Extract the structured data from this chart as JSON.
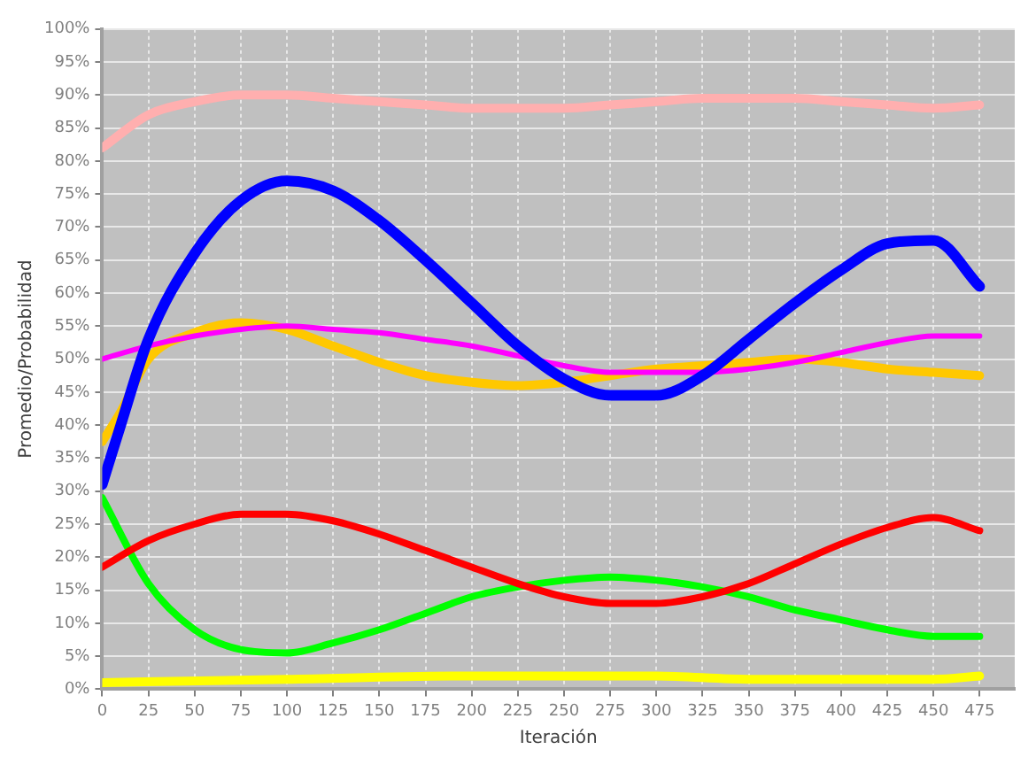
{
  "chart_data": {
    "type": "line",
    "xlabel": "Iteración",
    "ylabel": "Promedio/Probabilidad",
    "xlim": [
      0,
      494
    ],
    "xticks": [
      0,
      25,
      50,
      75,
      100,
      125,
      150,
      175,
      200,
      225,
      250,
      275,
      300,
      325,
      350,
      375,
      400,
      425,
      450,
      475
    ],
    "ylim": [
      0,
      100
    ],
    "yticks": [
      {
        "value": 0,
        "label": "0%"
      },
      {
        "value": 5,
        "label": "5%"
      },
      {
        "value": 10,
        "label": "10%"
      },
      {
        "value": 15,
        "label": "15%"
      },
      {
        "value": 20,
        "label": "20%"
      },
      {
        "value": 25,
        "label": "25%"
      },
      {
        "value": 30,
        "label": "30%"
      },
      {
        "value": 35,
        "label": "35%"
      },
      {
        "value": 40,
        "label": "40%"
      },
      {
        "value": 45,
        "label": "45%"
      },
      {
        "value": 50,
        "label": "50%"
      },
      {
        "value": 55,
        "label": "55%"
      },
      {
        "value": 60,
        "label": "60%"
      },
      {
        "value": 65,
        "label": "65%"
      },
      {
        "value": 70,
        "label": "70%"
      },
      {
        "value": 75,
        "label": "75%"
      },
      {
        "value": 80,
        "label": "80%"
      },
      {
        "value": 85,
        "label": "85%"
      },
      {
        "value": 90,
        "label": "90%"
      },
      {
        "value": 95,
        "label": "95%"
      },
      {
        "value": 100,
        "label": "100%"
      }
    ],
    "grid": true,
    "legend": false,
    "marker": "none",
    "line_style": "solid",
    "series": [
      {
        "color": "#ffafaf",
        "x": [
          0,
          25,
          50,
          75,
          100,
          125,
          150,
          175,
          200,
          225,
          250,
          275,
          300,
          325,
          350,
          375,
          400,
          425,
          450,
          475
        ],
        "values": [
          82,
          87,
          89,
          90,
          90,
          89.5,
          89,
          88.5,
          88,
          88,
          88,
          88.5,
          89,
          89.5,
          89.5,
          89.5,
          89,
          88.5,
          88,
          88.5
        ]
      },
      {
        "color": "#0000ff",
        "x": [
          0,
          10,
          25,
          50,
          75,
          100,
          125,
          150,
          175,
          200,
          225,
          250,
          275,
          300,
          325,
          350,
          375,
          400,
          425,
          450,
          475
        ],
        "values": [
          31,
          40,
          53,
          66,
          74,
          77,
          75.5,
          71,
          65,
          58.5,
          52,
          47,
          44.5,
          44.5,
          47.5,
          53,
          58.5,
          63.5,
          67.5,
          68,
          61
        ]
      },
      {
        "color": "#ff00ff",
        "x": [
          0,
          25,
          50,
          75,
          100,
          125,
          150,
          175,
          200,
          225,
          250,
          275,
          300,
          325,
          350,
          375,
          400,
          425,
          450,
          475
        ],
        "values": [
          50,
          52,
          53.5,
          54.5,
          55,
          54.5,
          54,
          53,
          52,
          50.5,
          49,
          48,
          48,
          48,
          48.5,
          49.5,
          51,
          52.5,
          53.5,
          53.5
        ]
      },
      {
        "color": "#ffc800",
        "x": [
          0,
          10,
          25,
          50,
          75,
          100,
          125,
          150,
          175,
          200,
          225,
          250,
          275,
          300,
          325,
          350,
          375,
          400,
          425,
          450,
          475
        ],
        "values": [
          37.5,
          42,
          50,
          54,
          55.5,
          54.5,
          52,
          49.5,
          47.5,
          46.5,
          46,
          46.5,
          47.5,
          48.5,
          49,
          49.5,
          50,
          49.5,
          48.5,
          48,
          47.5
        ]
      },
      {
        "color": "#ff0000",
        "x": [
          0,
          25,
          50,
          75,
          100,
          125,
          150,
          175,
          200,
          225,
          250,
          275,
          300,
          325,
          350,
          375,
          400,
          425,
          450,
          475
        ],
        "values": [
          18.5,
          22.5,
          25,
          26.5,
          26.5,
          25.5,
          23.5,
          21,
          18.5,
          16,
          14,
          13,
          13,
          14,
          16,
          19,
          22,
          24.5,
          26,
          24
        ]
      },
      {
        "color": "#00ff00",
        "x": [
          0,
          25,
          50,
          75,
          100,
          125,
          150,
          175,
          200,
          225,
          250,
          275,
          300,
          325,
          350,
          375,
          400,
          425,
          450,
          475
        ],
        "values": [
          29,
          16,
          9,
          6,
          5.5,
          7,
          9,
          11.5,
          14,
          15.5,
          16.5,
          17,
          16.5,
          15.5,
          14,
          12,
          10.5,
          9,
          8,
          8
        ]
      },
      {
        "color": "#ffff00",
        "x": [
          0,
          100,
          200,
          300,
          350,
          400,
          450,
          475
        ],
        "values": [
          1,
          1.5,
          2,
          2,
          1.5,
          1.5,
          1.5,
          2
        ]
      }
    ]
  }
}
